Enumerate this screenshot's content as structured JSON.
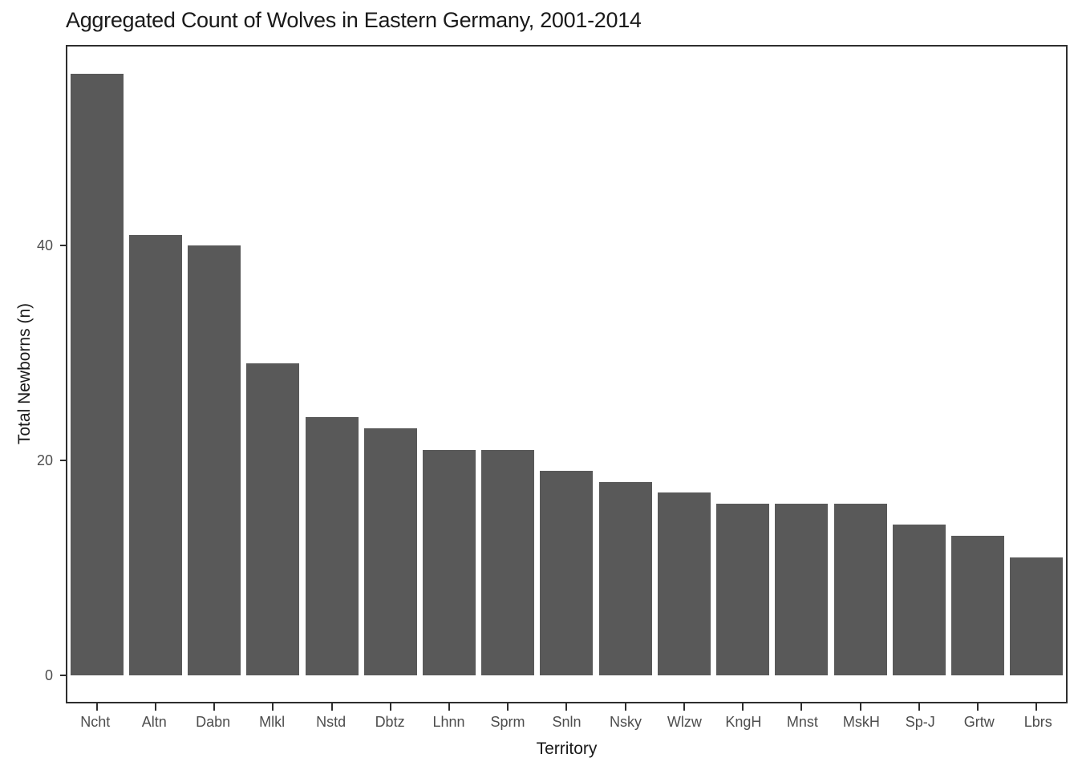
{
  "chart_data": {
    "type": "bar",
    "title": "Aggregated Count of Wolves in Eastern Germany, 2001-2014",
    "xlabel": "Territory",
    "ylabel": "Total Newborns (n)",
    "categories": [
      "Ncht",
      "Altn",
      "Dabn",
      "Mlkl",
      "Nstd",
      "Dbtz",
      "Lhnn",
      "Sprm",
      "Snln",
      "Nsky",
      "Wlzw",
      "KngH",
      "Mnst",
      "MskH",
      "Sp-J",
      "Grtw",
      "Lbrs"
    ],
    "values": [
      56,
      41,
      40,
      29,
      24,
      23,
      21,
      21,
      19,
      18,
      17,
      16,
      16,
      16,
      14,
      13,
      11
    ],
    "yticks": [
      0,
      20,
      40
    ],
    "ylim": [
      0,
      58
    ],
    "bar_color": "#595959",
    "grid": false,
    "legend": false
  }
}
